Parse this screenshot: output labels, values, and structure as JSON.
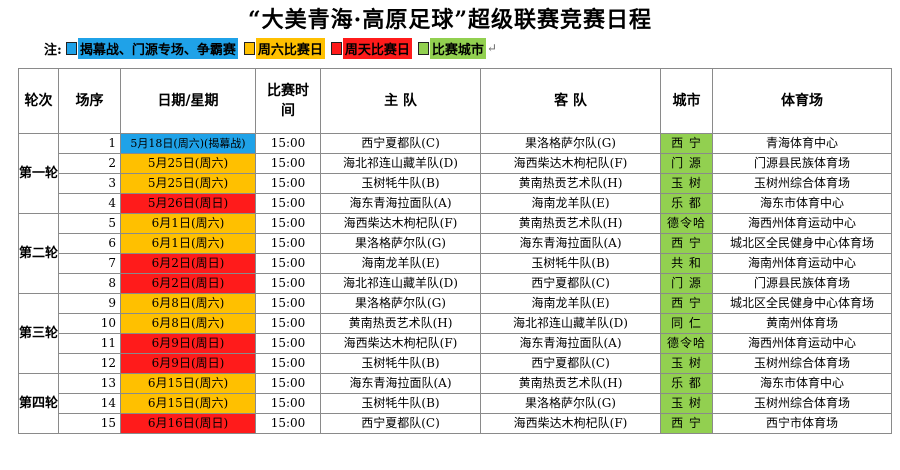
{
  "title": "“大美青海·高原足球”超级联赛竞赛日程",
  "legend": {
    "label": "注:",
    "arrow": "↵",
    "items": [
      {
        "text": "揭幕战、门源专场、争霸赛",
        "color": "#1fa2e8"
      },
      {
        "text": "周六比赛日",
        "color": "#ffc000"
      },
      {
        "text": "周天比赛日",
        "color": "#ff1b1b"
      },
      {
        "text": "比赛城市",
        "color": "#92d050"
      }
    ]
  },
  "colors": {
    "blue": "#1fa2e8",
    "orange": "#ffc000",
    "red": "#ff1b1b",
    "green": "#92d050"
  },
  "header": {
    "round": "轮次",
    "seq": "场序",
    "date": "日期/星期",
    "time": "比赛时间",
    "home": "主 队",
    "away": "客 队",
    "city": "城市",
    "venue": "体育场"
  },
  "rounds": [
    {
      "label": "第一轮",
      "rows": [
        0,
        1,
        2,
        3
      ]
    },
    {
      "label": "第二轮",
      "rows": [
        4,
        5,
        6,
        7
      ]
    },
    {
      "label": "第三轮",
      "rows": [
        8,
        9,
        10,
        11
      ]
    },
    {
      "label": "第四轮",
      "rows": [
        12,
        13,
        14
      ]
    }
  ],
  "matches": [
    {
      "seq": "1",
      "date": "5月18日(周六)(揭幕战)",
      "date_color": "blue",
      "time": "15:00",
      "home": "西宁夏都队(C)",
      "away": "果洛格萨尔队(G)",
      "city": "西 宁",
      "venue": "青海体育中心"
    },
    {
      "seq": "2",
      "date": "5月25日(周六)",
      "date_color": "orange",
      "time": "15:00",
      "home": "海北祁连山藏羊队(D)",
      "away": "海西柴达木枸杞队(F)",
      "city": "门 源",
      "venue": "门源县民族体育场"
    },
    {
      "seq": "3",
      "date": "5月25日(周六)",
      "date_color": "orange",
      "time": "15:00",
      "home": "玉树牦牛队(B)",
      "away": "黄南热贡艺术队(H)",
      "city": "玉 树",
      "venue": "玉树州综合体育场"
    },
    {
      "seq": "4",
      "date": "5月26日(周日)",
      "date_color": "red",
      "time": "15:00",
      "home": "海东青海拉面队(A)",
      "away": "海南龙羊队(E)",
      "city": "乐 都",
      "venue": "海东市体育中心"
    },
    {
      "seq": "5",
      "date": "6月1日(周六)",
      "date_color": "orange",
      "time": "15:00",
      "home": "海西柴达木枸杞队(F)",
      "away": "黄南热贡艺术队(H)",
      "city": "德令哈",
      "venue": "海西州体育运动中心"
    },
    {
      "seq": "6",
      "date": "6月1日(周六)",
      "date_color": "orange",
      "time": "15:00",
      "home": "果洛格萨尔队(G)",
      "away": "海东青海拉面队(A)",
      "city": "西 宁",
      "venue": "城北区全民健身中心体育场"
    },
    {
      "seq": "7",
      "date": "6月2日(周日)",
      "date_color": "red",
      "time": "15:00",
      "home": "海南龙羊队(E)",
      "away": "玉树牦牛队(B)",
      "city": "共 和",
      "venue": "海南州体育运动中心"
    },
    {
      "seq": "8",
      "date": "6月2日(周日)",
      "date_color": "red",
      "time": "15:00",
      "home": "海北祁连山藏羊队(D)",
      "away": "西宁夏都队(C)",
      "city": "门 源",
      "venue": "门源县民族体育场"
    },
    {
      "seq": "9",
      "date": "6月8日(周六)",
      "date_color": "orange",
      "time": "15:00",
      "home": "果洛格萨尔队(G)",
      "away": "海南龙羊队(E)",
      "city": "西 宁",
      "venue": "城北区全民健身中心体育场"
    },
    {
      "seq": "10",
      "date": "6月8日(周六)",
      "date_color": "orange",
      "time": "15:00",
      "home": "黄南热贡艺术队(H)",
      "away": "海北祁连山藏羊队(D)",
      "city": "同 仁",
      "venue": "黄南州体育场"
    },
    {
      "seq": "11",
      "date": "6月9日(周日)",
      "date_color": "red",
      "time": "15:00",
      "home": "海西柴达木枸杞队(F)",
      "away": "海东青海拉面队(A)",
      "city": "德令哈",
      "venue": "海西州体育运动中心"
    },
    {
      "seq": "12",
      "date": "6月9日(周日)",
      "date_color": "red",
      "time": "15:00",
      "home": "玉树牦牛队(B)",
      "away": "西宁夏都队(C)",
      "city": "玉 树",
      "venue": "玉树州综合体育场"
    },
    {
      "seq": "13",
      "date": "6月15日(周六)",
      "date_color": "orange",
      "time": "15:00",
      "home": "海东青海拉面队(A)",
      "away": "黄南热贡艺术队(H)",
      "city": "乐 都",
      "venue": "海东市体育中心"
    },
    {
      "seq": "14",
      "date": "6月15日(周六)",
      "date_color": "orange",
      "time": "15:00",
      "home": "玉树牦牛队(B)",
      "away": "果洛格萨尔队(G)",
      "city": "玉 树",
      "venue": "玉树州综合体育场"
    },
    {
      "seq": "15",
      "date": "6月16日(周日)",
      "date_color": "red",
      "time": "15:00",
      "home": "西宁夏都队(C)",
      "away": "海西柴达木枸杞队(F)",
      "city": "西 宁",
      "venue": "西宁市体育场"
    }
  ]
}
